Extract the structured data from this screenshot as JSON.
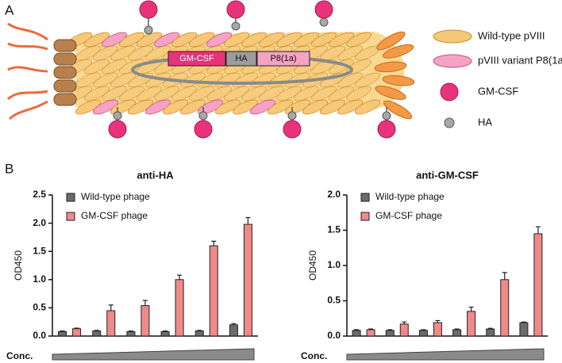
{
  "panel_a": {
    "label": "A",
    "construct": [
      "GM-CSF",
      "HA",
      "P8(1a)"
    ],
    "legend": [
      "Wild-type pVIII",
      "pVIII variant P8(1a)",
      "GM-CSF",
      "HA"
    ]
  },
  "panel_b": {
    "label": "B"
  },
  "chart_data": [
    {
      "type": "bar",
      "title": "anti-HA",
      "y_label": "OD450",
      "x_label": "Conc.",
      "categories": [
        null,
        null,
        null,
        null,
        null,
        null
      ],
      "series": [
        {
          "name": "Wild-type phage",
          "color": "#6b6b6b",
          "values": [
            0.08,
            0.09,
            0.08,
            0.08,
            0.09,
            0.2
          ],
          "errors": [
            0.01,
            0.01,
            0.01,
            0.01,
            0.01,
            0.02
          ]
        },
        {
          "name": "GM-CSF phage",
          "color": "#f08a8a",
          "values": [
            0.13,
            0.45,
            0.54,
            1.0,
            1.6,
            1.98
          ],
          "errors": [
            0.01,
            0.1,
            0.09,
            0.08,
            0.08,
            0.12
          ]
        }
      ],
      "ylim": [
        0,
        2.5
      ],
      "yticks": [
        {
          "value": 0,
          "label": "0.0"
        },
        0.5,
        {
          "value": 1,
          "label": "1.0"
        },
        1.5,
        {
          "value": 2,
          "label": "2.0"
        },
        2.5
      ],
      "legend": "upper left"
    },
    {
      "type": "bar",
      "title": "anti-GM-CSF",
      "y_label": "OD450",
      "x_label": "Conc.",
      "categories": [
        null,
        null,
        null,
        null,
        null,
        null
      ],
      "series": [
        {
          "name": "Wild-type phage",
          "color": "#6b6b6b",
          "values": [
            0.08,
            0.08,
            0.08,
            0.09,
            0.1,
            0.19
          ],
          "errors": [
            0.01,
            0.01,
            0.01,
            0.01,
            0.01,
            0.01
          ]
        },
        {
          "name": "GM-CSF phage",
          "color": "#f08a8a",
          "values": [
            0.09,
            0.17,
            0.19,
            0.35,
            0.8,
            1.45
          ],
          "errors": [
            0.01,
            0.03,
            0.03,
            0.06,
            0.1,
            0.1
          ]
        }
      ],
      "ylim": [
        0,
        2.0
      ],
      "yticks": [
        {
          "value": 0,
          "label": "0.0"
        },
        0.5,
        {
          "value": 1,
          "label": "1.0"
        },
        1.5,
        {
          "value": 2,
          "label": "2.0"
        }
      ],
      "legend": "upper left"
    }
  ]
}
